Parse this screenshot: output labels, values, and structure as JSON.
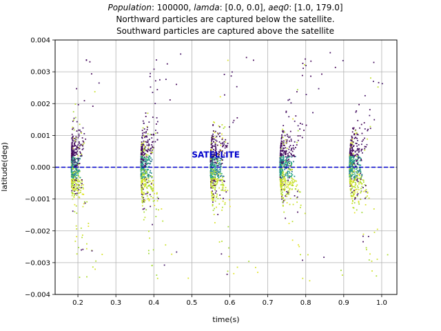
{
  "chart_data": {
    "type": "scatter",
    "title": {
      "line1": [
        {
          "text": "Population",
          "italic": true
        },
        {
          "text": ": 100000, ",
          "italic": false
        },
        {
          "text": "lamda",
          "italic": true
        },
        {
          "text": ": [0.0, 0.0], ",
          "italic": false
        },
        {
          "text": "aeq0",
          "italic": true
        },
        {
          "text": ": [1.0, 179.0]",
          "italic": false
        }
      ],
      "line2": "Northward particles are captured below the satellite.",
      "line3": "Southward particles are captured above the satellite"
    },
    "xlabel": "time(s)",
    "ylabel": "latitude(deg)",
    "xlim": [
      0.14,
      1.04
    ],
    "ylim": [
      -0.004,
      0.004
    ],
    "xticks": [
      0.2,
      0.3,
      0.4,
      0.5,
      0.6,
      0.7,
      0.8,
      0.9,
      1.0
    ],
    "xtick_labels": [
      "0.2",
      "0.3",
      "0.4",
      "0.5",
      "0.6",
      "0.7",
      "0.8",
      "0.9",
      "1.0"
    ],
    "yticks": [
      -0.004,
      -0.003,
      -0.002,
      -0.001,
      0.0,
      0.001,
      0.002,
      0.003,
      0.004
    ],
    "ytick_labels": [
      "−0.004",
      "−0.003",
      "−0.002",
      "−0.001",
      "0.000",
      "0.001",
      "0.002",
      "0.003",
      "0.004"
    ],
    "grid": true,
    "satellite_line": {
      "y": 0.0,
      "label": "SATELLITE",
      "label_x": 0.5,
      "label_y": 0.0003,
      "color": "#0000cc",
      "style": "dashed"
    },
    "colormap": "viridis",
    "color_low": "#440154",
    "color_high": "#fde725",
    "bands": [
      {
        "t_edge": 0.183,
        "curvature": 0.005,
        "spread": 0.06,
        "count": 520
      },
      {
        "t_edge": 0.366,
        "curvature": 0.008,
        "spread": 0.07,
        "count": 520
      },
      {
        "t_edge": 0.549,
        "curvature": 0.011,
        "spread": 0.08,
        "count": 540
      },
      {
        "t_edge": 0.732,
        "curvature": 0.014,
        "spread": 0.09,
        "count": 560
      },
      {
        "t_edge": 0.915,
        "curvature": 0.016,
        "spread": 0.08,
        "count": 540
      }
    ]
  }
}
